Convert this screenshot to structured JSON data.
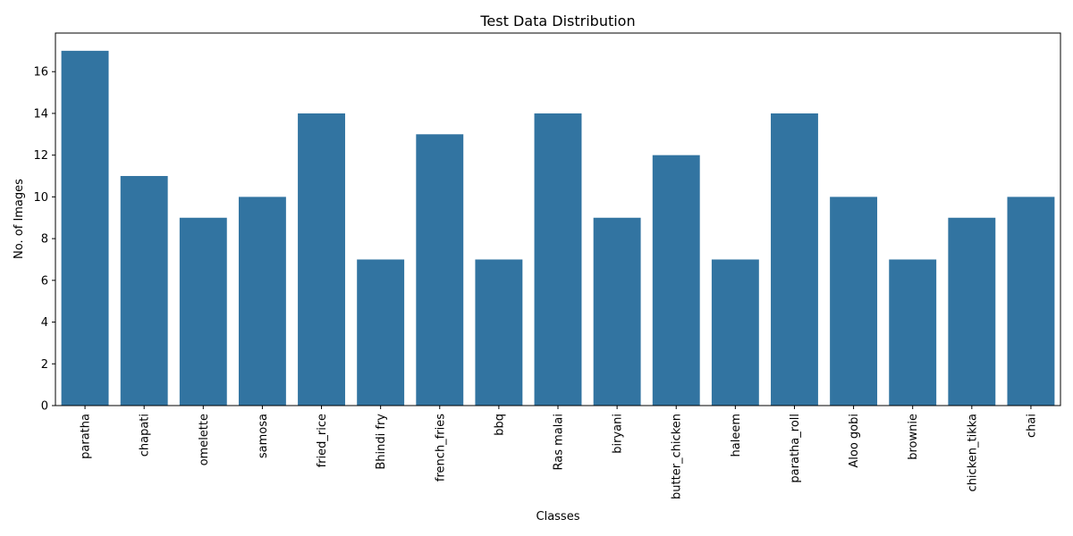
{
  "chart_data": {
    "type": "bar",
    "title": "Test Data Distribution",
    "xlabel": "Classes",
    "ylabel": "No. of Images",
    "categories": [
      "paratha",
      "chapati",
      "omelette",
      "samosa",
      "fried_rice",
      "Bhindi fry",
      "french_fries",
      "bbq",
      "Ras malai",
      "biryani",
      "butter_chicken",
      "haleem",
      "paratha_roll",
      "Aloo gobi",
      "brownie",
      "chicken_tikka",
      "chai"
    ],
    "values": [
      17,
      11,
      9,
      10,
      14,
      7,
      13,
      7,
      14,
      9,
      12,
      7,
      14,
      10,
      7,
      9,
      10
    ],
    "ylim": [
      0,
      17.85
    ],
    "yticks": [
      "0",
      "2",
      "4",
      "6",
      "8",
      "10",
      "12",
      "14",
      "16"
    ],
    "grid": false,
    "legend": "none",
    "bar_color": "#3274a1"
  }
}
